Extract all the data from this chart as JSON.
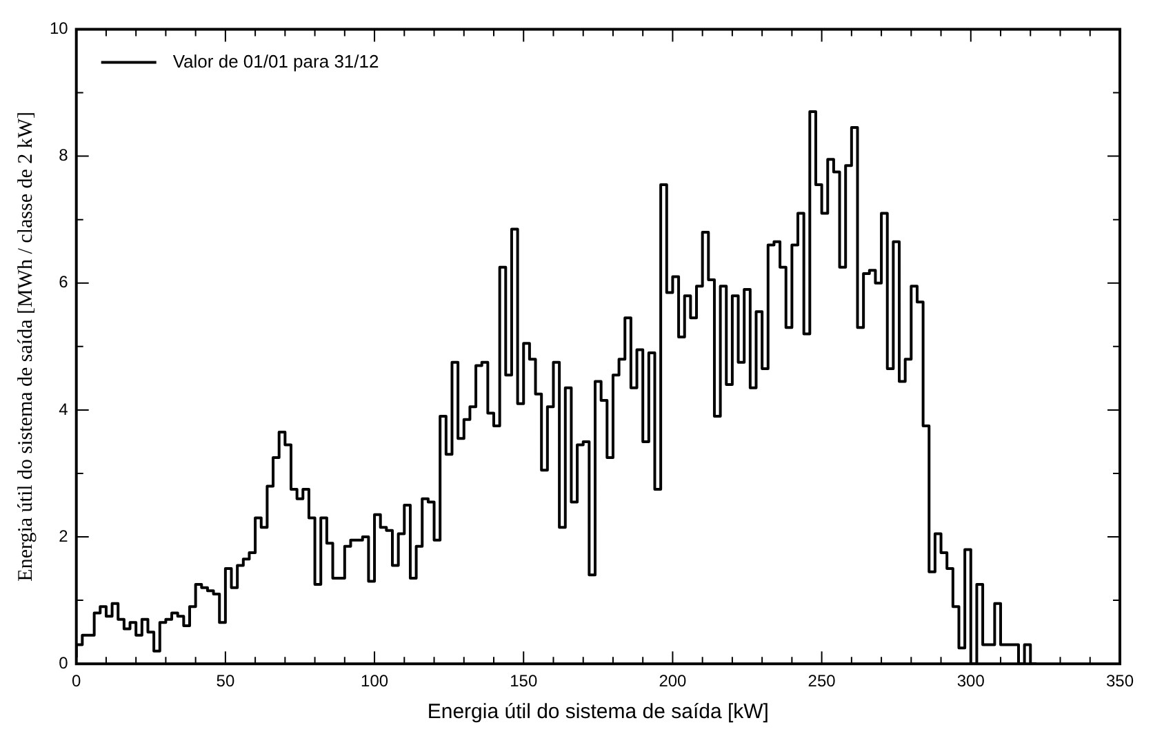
{
  "chart_data": {
    "type": "step",
    "xlabel": "Energia útil do sistema de saída [kW]",
    "ylabel": "Energia útil do sistema de saída [MWh / classe de 2 kW]",
    "x": [
      0,
      2,
      4,
      6,
      8,
      10,
      12,
      14,
      16,
      18,
      20,
      22,
      24,
      26,
      28,
      30,
      32,
      34,
      36,
      38,
      40,
      42,
      44,
      46,
      48,
      50,
      52,
      54,
      56,
      58,
      60,
      62,
      64,
      66,
      68,
      70,
      72,
      74,
      76,
      78,
      80,
      82,
      84,
      86,
      88,
      90,
      92,
      94,
      96,
      98,
      100,
      102,
      104,
      106,
      108,
      110,
      112,
      114,
      116,
      118,
      120,
      122,
      124,
      126,
      128,
      130,
      132,
      134,
      136,
      138,
      140,
      142,
      144,
      146,
      148,
      150,
      152,
      154,
      156,
      158,
      160,
      162,
      164,
      166,
      168,
      170,
      172,
      174,
      176,
      178,
      180,
      182,
      184,
      186,
      188,
      190,
      192,
      194,
      196,
      198,
      200,
      202,
      204,
      206,
      208,
      210,
      212,
      214,
      216,
      218,
      220,
      222,
      224,
      226,
      228,
      230,
      232,
      234,
      236,
      238,
      240,
      242,
      244,
      246,
      248,
      250,
      252,
      254,
      256,
      258,
      260,
      262,
      264,
      266,
      268,
      270,
      272,
      274,
      276,
      278,
      280,
      282,
      284,
      286,
      288,
      290,
      292,
      294,
      296,
      298,
      300,
      302,
      304,
      306,
      308,
      310,
      312,
      314,
      316,
      318,
      320,
      322
    ],
    "series": [
      {
        "name": "Valor de 01/01 para 31/12",
        "color": "#000000",
        "values": [
          0.1,
          0.3,
          0.45,
          0.45,
          0.8,
          0.9,
          0.75,
          0.95,
          0.7,
          0.55,
          0.65,
          0.45,
          0.7,
          0.5,
          0.2,
          0.65,
          0.7,
          0.8,
          0.75,
          0.6,
          0.9,
          1.25,
          1.2,
          1.15,
          1.1,
          0.65,
          1.5,
          1.2,
          1.55,
          1.65,
          1.75,
          2.3,
          2.15,
          2.8,
          3.25,
          3.65,
          3.45,
          2.75,
          2.6,
          2.75,
          2.3,
          1.25,
          2.3,
          1.9,
          1.35,
          1.35,
          1.85,
          1.95,
          1.95,
          2,
          1.3,
          2.35,
          2.15,
          2.1,
          1.55,
          2.05,
          2.5,
          1.35,
          1.85,
          2.6,
          2.55,
          1.95,
          3.9,
          3.3,
          4.75,
          3.55,
          3.85,
          4.05,
          4.7,
          4.75,
          3.95,
          3.75,
          6.25,
          4.55,
          6.85,
          4.1,
          5.05,
          4.8,
          4.25,
          3.05,
          4.05,
          4.75,
          2.15,
          4.35,
          2.55,
          3.45,
          3.5,
          1.4,
          4.45,
          4.15,
          3.25,
          4.55,
          4.8,
          5.45,
          4.35,
          4.95,
          3.5,
          4.9,
          2.75,
          7.55,
          5.85,
          6.1,
          5.15,
          5.8,
          5.45,
          5.95,
          6.8,
          6.05,
          3.9,
          5.95,
          4.4,
          5.8,
          4.75,
          5.9,
          4.35,
          5.55,
          4.65,
          6.6,
          6.65,
          6.25,
          5.3,
          6.6,
          7.1,
          5.2,
          8.7,
          7.55,
          7.1,
          7.95,
          7.75,
          6.25,
          7.85,
          8.45,
          5.3,
          6.15,
          6.2,
          6,
          7.1,
          4.65,
          6.65,
          4.45,
          4.8,
          5.95,
          5.7,
          3.75,
          1.45,
          2.05,
          1.75,
          1.5,
          0.9,
          0.25,
          1.8,
          0,
          1.25,
          0.3,
          0.3,
          0.95,
          0.3,
          0.3,
          0.3,
          0,
          0.3,
          0
        ]
      }
    ],
    "legend": "top left",
    "xlim": [
      0,
      350
    ],
    "xticks": [
      0,
      {
        "value": 10,
        "label": null
      },
      {
        "value": 20,
        "label": null
      },
      {
        "value": 30,
        "label": null
      },
      {
        "value": 40,
        "label": null
      },
      50,
      {
        "value": 60,
        "label": null
      },
      {
        "value": 70,
        "label": null
      },
      {
        "value": 80,
        "label": null
      },
      {
        "value": 90,
        "label": null
      },
      100,
      {
        "value": 110,
        "label": null
      },
      {
        "value": 120,
        "label": null
      },
      {
        "value": 130,
        "label": null
      },
      {
        "value": 140,
        "label": null
      },
      150,
      {
        "value": 160,
        "label": null
      },
      {
        "value": 170,
        "label": null
      },
      {
        "value": 180,
        "label": null
      },
      {
        "value": 190,
        "label": null
      },
      200,
      {
        "value": 210,
        "label": null
      },
      {
        "value": 220,
        "label": null
      },
      {
        "value": 230,
        "label": null
      },
      {
        "value": 240,
        "label": null
      },
      250,
      {
        "value": 260,
        "label": null
      },
      {
        "value": 270,
        "label": null
      },
      {
        "value": 280,
        "label": null
      },
      {
        "value": 290,
        "label": null
      },
      300,
      {
        "value": 310,
        "label": null
      },
      {
        "value": 320,
        "label": null
      },
      {
        "value": 330,
        "label": null
      },
      {
        "value": 340,
        "label": null
      },
      350
    ],
    "ylim": [
      0,
      10
    ],
    "yticks": [
      0,
      {
        "value": 1,
        "label": null
      },
      2,
      {
        "value": 3,
        "label": null
      },
      4,
      {
        "value": 5,
        "label": null
      },
      6,
      {
        "value": 7,
        "label": null
      },
      8,
      {
        "value": 9,
        "label": null
      },
      10
    ],
    "grid": false
  }
}
